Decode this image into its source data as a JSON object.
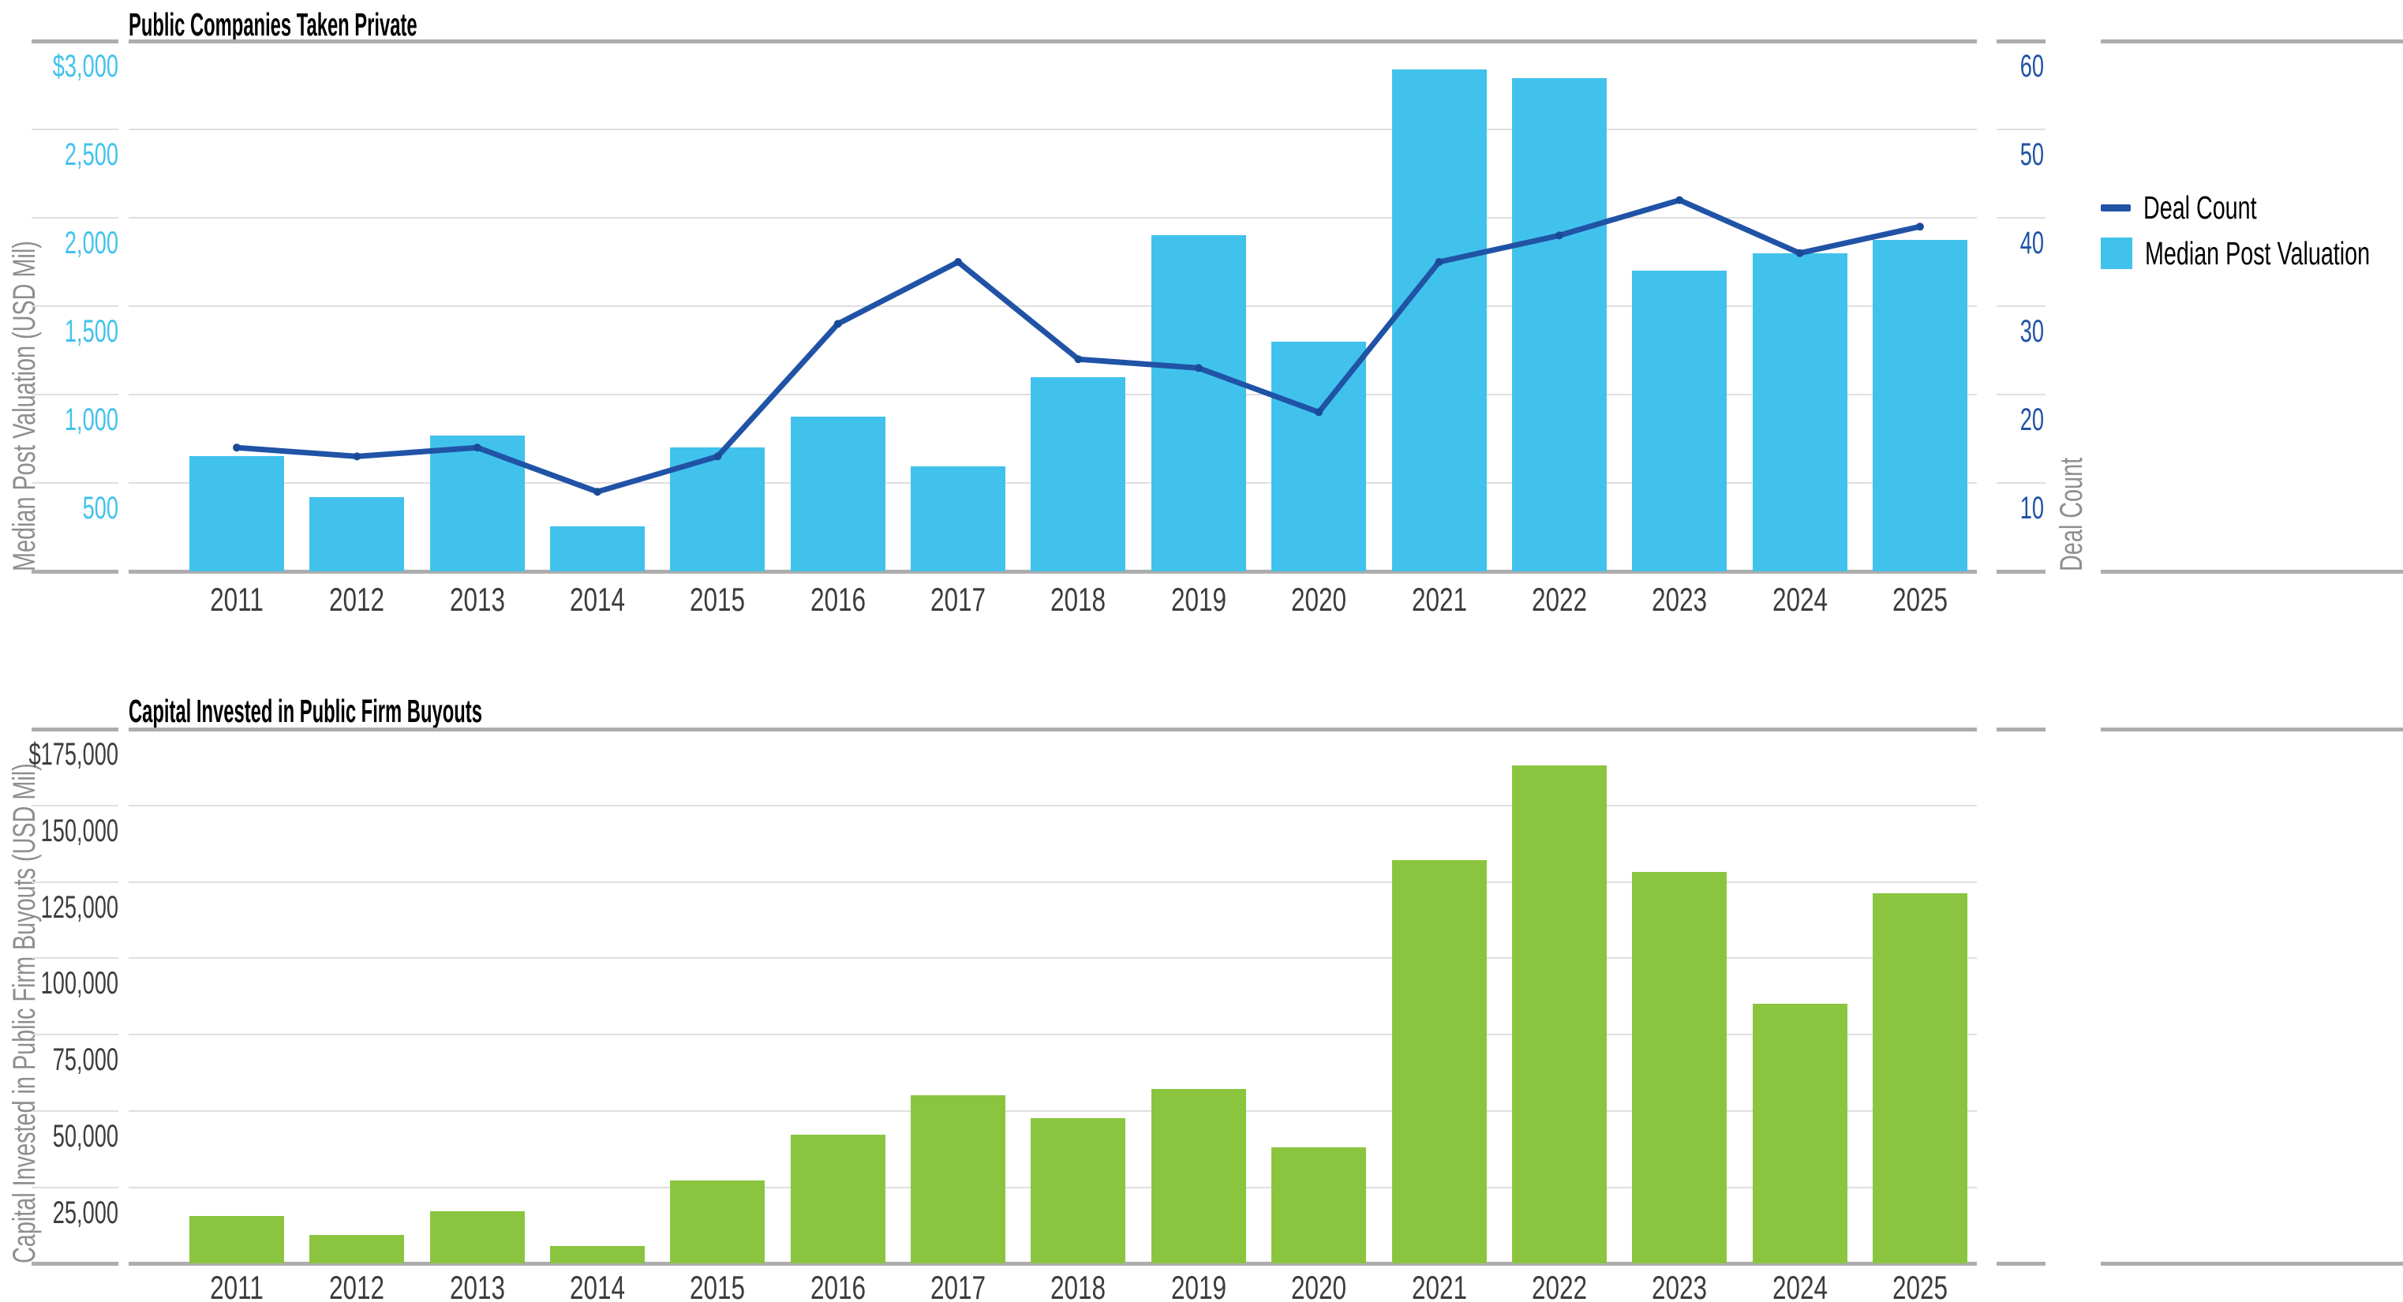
{
  "page": {
    "background": "#FFFFFF"
  },
  "chart_data": [
    {
      "type": "bar+line",
      "title": "Public Companies Taken Private",
      "categories": [
        "2011",
        "2012",
        "2013",
        "2014",
        "2015",
        "2016",
        "2017",
        "2018",
        "2019",
        "2020",
        "2021",
        "2022",
        "2023",
        "2024",
        "2025"
      ],
      "series": [
        {
          "name": "Median Post Valuation",
          "type": "bar",
          "axis": "left",
          "color": "#41C2EC",
          "values": [
            650,
            420,
            770,
            255,
            700,
            875,
            595,
            1100,
            1900,
            1300,
            2840,
            2790,
            1700,
            1800,
            1875
          ]
        },
        {
          "name": "Deal Count",
          "type": "line",
          "axis": "right",
          "color": "#2053A6",
          "values": [
            14,
            13,
            14,
            9,
            13,
            28,
            35,
            24,
            23,
            18,
            35,
            38,
            42,
            36,
            39
          ]
        }
      ],
      "ylabel_left": "Median Post Valuation (USD Mil)",
      "ylabel_right": "Deal Count",
      "ylim_left": [
        0,
        3000
      ],
      "ylim_right": [
        0,
        60
      ],
      "yticks_left": {
        "values": [
          3000,
          2500,
          2000,
          1500,
          1000,
          500
        ],
        "labels": [
          "$3,000",
          "2,500",
          "2,000",
          "1,500",
          "1,000",
          "500"
        ]
      },
      "yticks_right": {
        "values": [
          60,
          50,
          40,
          30,
          20,
          10
        ],
        "labels": [
          "60",
          "50",
          "40",
          "30",
          "20",
          "10"
        ]
      },
      "axis_colors": {
        "left": "#41C2EC",
        "right": "#2053A6"
      },
      "legend": {
        "position": "right",
        "entries": [
          {
            "label": "Deal Count",
            "marker": "line",
            "color": "#2053A6"
          },
          {
            "label": "Median Post Valuation",
            "marker": "square",
            "color": "#41C2EC"
          }
        ]
      },
      "grid": "horizontal"
    },
    {
      "type": "bar",
      "title": "Capital Invested in Public Firm Buyouts",
      "categories": [
        "2011",
        "2012",
        "2013",
        "2014",
        "2015",
        "2016",
        "2017",
        "2018",
        "2019",
        "2020",
        "2021",
        "2022",
        "2023",
        "2024",
        "2025"
      ],
      "series": [
        {
          "name": "Capital Invested in Public Firm Buyouts",
          "type": "bar",
          "axis": "left",
          "color": "#8BC540",
          "values": [
            15500,
            9300,
            17000,
            5700,
            27000,
            42000,
            55000,
            47500,
            57000,
            38000,
            132000,
            163000,
            128000,
            85000,
            121000
          ]
        }
      ],
      "ylabel_left": "Capital Invested in Public Firm Buyouts (USD Mil)",
      "ylim_left": [
        0,
        175000
      ],
      "yticks_left": {
        "values": [
          175000,
          150000,
          125000,
          100000,
          75000,
          50000,
          25000
        ],
        "labels": [
          "$175,000",
          "150,000",
          "125,000",
          "100,000",
          "75,000",
          "50,000",
          "25,000"
        ]
      },
      "axis_colors": {
        "left": "#3C3C3C"
      },
      "grid": "horizontal"
    }
  ],
  "colors": {
    "bar_blue": "#41C2EC",
    "line_blue": "#2053A6",
    "bar_green": "#8BC540",
    "gridline": "#DFDFDF",
    "axis_line": "#ADADAD",
    "axis_title_gray": "#8E8E8E",
    "tick_gray": "#3C3C3C"
  }
}
